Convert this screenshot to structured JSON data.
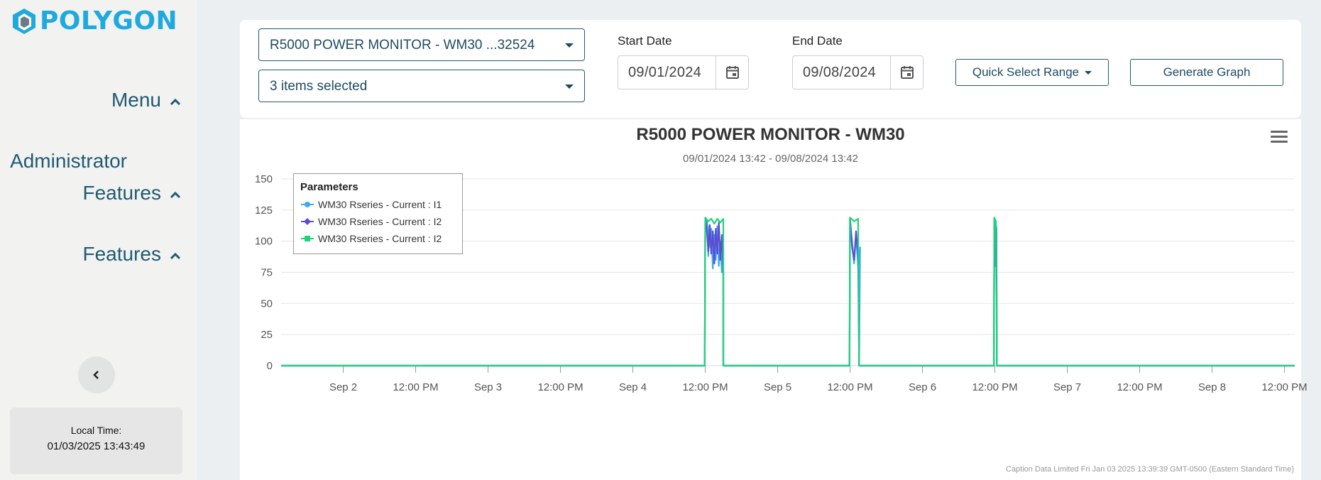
{
  "sidebar": {
    "logo_text": "POLYGON",
    "menu_label": "Menu",
    "admin_label_line1": "Administrator",
    "admin_label_line2": "Features",
    "features_label": "Features",
    "time_label": "Local Time:",
    "time_value": "01/03/2025 13:43:49"
  },
  "toolbar": {
    "device_select": "R5000 POWER MONITOR - WM30 ...32524",
    "params_select": "3 items selected",
    "start_label": "Start Date",
    "start_value": "09/01/2024",
    "end_label": "End Date",
    "end_value": "09/08/2024",
    "quick_select_label": "Quick Select Range",
    "generate_label": "Generate Graph"
  },
  "colors": {
    "accent": "#1f5a74",
    "logo": "#1fa9df",
    "series_i1": "#3fa9f5",
    "series_i2": "#5b4fd1",
    "series_i2b": "#1ed47a"
  },
  "chart_data": {
    "type": "line",
    "title": "R5000 POWER MONITOR - WM30",
    "subtitle": "09/01/2024 13:42 - 09/08/2024 13:42",
    "legend_title": "Parameters",
    "legend_position": "top-left",
    "grid": true,
    "ylim": [
      0,
      150
    ],
    "yticks": [
      0,
      25,
      50,
      75,
      100,
      125,
      150
    ],
    "xlim": [
      "09/01/2024 13:42",
      "09/08/2024 13:42"
    ],
    "xticks": [
      {
        "label": "Sep 2",
        "t": "09/02/2024 00:00"
      },
      {
        "label": "12:00 PM",
        "t": "09/02/2024 12:00"
      },
      {
        "label": "Sep 3",
        "t": "09/03/2024 00:00"
      },
      {
        "label": "12:00 PM",
        "t": "09/03/2024 12:00"
      },
      {
        "label": "Sep 4",
        "t": "09/04/2024 00:00"
      },
      {
        "label": "12:00 PM",
        "t": "09/04/2024 12:00"
      },
      {
        "label": "Sep 5",
        "t": "09/05/2024 00:00"
      },
      {
        "label": "12:00 PM",
        "t": "09/05/2024 12:00"
      },
      {
        "label": "Sep 6",
        "t": "09/06/2024 00:00"
      },
      {
        "label": "12:00 PM",
        "t": "09/06/2024 12:00"
      },
      {
        "label": "Sep 7",
        "t": "09/07/2024 00:00"
      },
      {
        "label": "12:00 PM",
        "t": "09/07/2024 12:00"
      },
      {
        "label": "Sep 8",
        "t": "09/08/2024 00:00"
      },
      {
        "label": "12:00 PM",
        "t": "09/08/2024 12:00"
      }
    ],
    "series": [
      {
        "name": "WM30 Rseries - Current : I1",
        "color": "#3fa9f5",
        "marker": "circle",
        "points": [
          [
            "09/01/2024 13:42",
            0
          ],
          [
            "09/04/2024 11:55",
            0
          ],
          [
            "09/04/2024 12:00",
            118
          ],
          [
            "09/04/2024 12:20",
            115
          ],
          [
            "09/04/2024 12:30",
            88
          ],
          [
            "09/04/2024 12:40",
            112
          ],
          [
            "09/04/2024 12:50",
            95
          ],
          [
            "09/04/2024 13:00",
            110
          ],
          [
            "09/04/2024 13:15",
            78
          ],
          [
            "09/04/2024 13:30",
            105
          ],
          [
            "09/04/2024 13:45",
            85
          ],
          [
            "09/04/2024 14:00",
            112
          ],
          [
            "09/04/2024 14:15",
            80
          ],
          [
            "09/04/2024 14:30",
            100
          ],
          [
            "09/04/2024 14:45",
            75
          ],
          [
            "09/04/2024 15:00",
            95
          ],
          [
            "09/04/2024 15:00",
            0
          ],
          [
            "09/05/2024 11:55",
            0
          ],
          [
            "09/05/2024 12:00",
            118
          ],
          [
            "09/05/2024 12:20",
            100
          ],
          [
            "09/05/2024 12:40",
            82
          ],
          [
            "09/05/2024 13:00",
            105
          ],
          [
            "09/05/2024 13:20",
            80
          ],
          [
            "09/05/2024 13:40",
            95
          ],
          [
            "09/05/2024 13:30",
            0
          ],
          [
            "09/06/2024 11:50",
            0
          ],
          [
            "09/06/2024 11:55",
            118
          ],
          [
            "09/06/2024 12:05",
            85
          ],
          [
            "09/06/2024 12:15",
            112
          ],
          [
            "09/06/2024 12:20",
            0
          ],
          [
            "09/08/2024 13:42",
            0
          ]
        ]
      },
      {
        "name": "WM30 Rseries - Current : I2",
        "color": "#5b4fd1",
        "marker": "diamond",
        "points": [
          [
            "09/01/2024 13:42",
            0
          ],
          [
            "09/04/2024 11:55",
            0
          ],
          [
            "09/04/2024 12:00",
            118
          ],
          [
            "09/04/2024 12:15",
            110
          ],
          [
            "09/04/2024 12:30",
            92
          ],
          [
            "09/04/2024 12:45",
            113
          ],
          [
            "09/04/2024 13:00",
            90
          ],
          [
            "09/04/2024 13:15",
            108
          ],
          [
            "09/04/2024 13:30",
            82
          ],
          [
            "09/04/2024 13:45",
            110
          ],
          [
            "09/04/2024 14:00",
            90
          ],
          [
            "09/04/2024 14:15",
            115
          ],
          [
            "09/04/2024 14:30",
            85
          ],
          [
            "09/04/2024 14:45",
            105
          ],
          [
            "09/04/2024 15:00",
            73
          ],
          [
            "09/04/2024 15:00",
            0
          ],
          [
            "09/05/2024 11:55",
            0
          ],
          [
            "09/05/2024 12:00",
            118
          ],
          [
            "09/05/2024 12:20",
            95
          ],
          [
            "09/05/2024 12:40",
            85
          ],
          [
            "09/05/2024 13:00",
            108
          ],
          [
            "09/05/2024 13:20",
            88
          ],
          [
            "09/05/2024 13:30",
            0
          ],
          [
            "09/06/2024 11:50",
            0
          ],
          [
            "09/06/2024 11:55",
            118
          ],
          [
            "09/06/2024 12:05",
            80
          ],
          [
            "09/06/2024 12:15",
            110
          ],
          [
            "09/06/2024 12:20",
            0
          ],
          [
            "09/08/2024 13:42",
            0
          ]
        ]
      },
      {
        "name": "WM30 Rseries - Current : I2",
        "color": "#1ed47a",
        "marker": "square",
        "points": [
          [
            "09/01/2024 13:42",
            0
          ],
          [
            "09/04/2024 11:55",
            0
          ],
          [
            "09/04/2024 12:00",
            119
          ],
          [
            "09/04/2024 12:30",
            116
          ],
          [
            "09/04/2024 13:00",
            118
          ],
          [
            "09/04/2024 13:30",
            114
          ],
          [
            "09/04/2024 14:00",
            118
          ],
          [
            "09/04/2024 14:30",
            115
          ],
          [
            "09/04/2024 15:00",
            118
          ],
          [
            "09/04/2024 15:00",
            0
          ],
          [
            "09/05/2024 11:55",
            0
          ],
          [
            "09/05/2024 12:00",
            119
          ],
          [
            "09/05/2024 12:40",
            116
          ],
          [
            "09/05/2024 13:20",
            118
          ],
          [
            "09/05/2024 13:30",
            0
          ],
          [
            "09/06/2024 11:50",
            0
          ],
          [
            "09/06/2024 11:55",
            119
          ],
          [
            "09/06/2024 12:10",
            116
          ],
          [
            "09/06/2024 12:20",
            0
          ],
          [
            "09/08/2024 13:42",
            0
          ]
        ]
      }
    ],
    "credits": "Caption Data Limited Fri Jan 03 2025 13:39:39 GMT-0500 (Eastern Standard Time)"
  }
}
